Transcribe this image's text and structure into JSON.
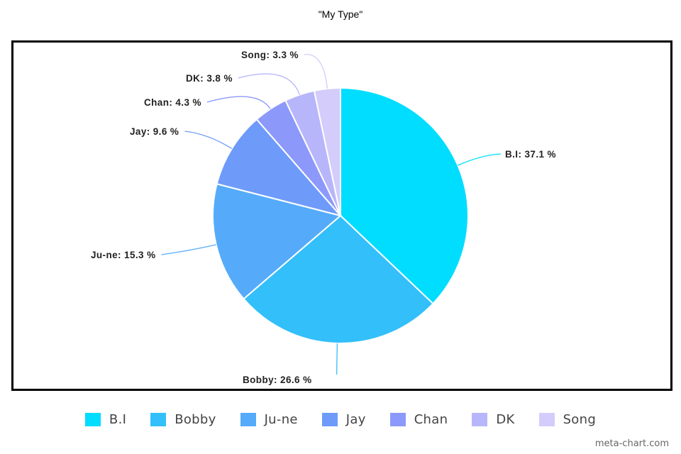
{
  "chart_data": {
    "type": "pie",
    "title": "\"My Type\"",
    "categories": [
      "B.I",
      "Bobby",
      "Ju-ne",
      "Jay",
      "Chan",
      "DK",
      "Song"
    ],
    "values": [
      37.1,
      26.6,
      15.3,
      9.6,
      4.3,
      3.8,
      3.3
    ],
    "colors": [
      "#00DDFF",
      "#33BFFA",
      "#55ABFA",
      "#6E9BFA",
      "#8C99FA",
      "#B8B6FA",
      "#D4CCFB"
    ],
    "data_labels": [
      "B.I: 37.1 %",
      "Bobby: 26.6 %",
      "Ju-ne: 15.3 %",
      "Jay: 9.6 %",
      "Chan: 4.3 %",
      "DK: 3.8 %",
      "Song: 3.3 %"
    ],
    "start_angle_deg": 0,
    "direction": "clockwise",
    "legend_position": "bottom"
  },
  "watermark": "meta-chart.com"
}
